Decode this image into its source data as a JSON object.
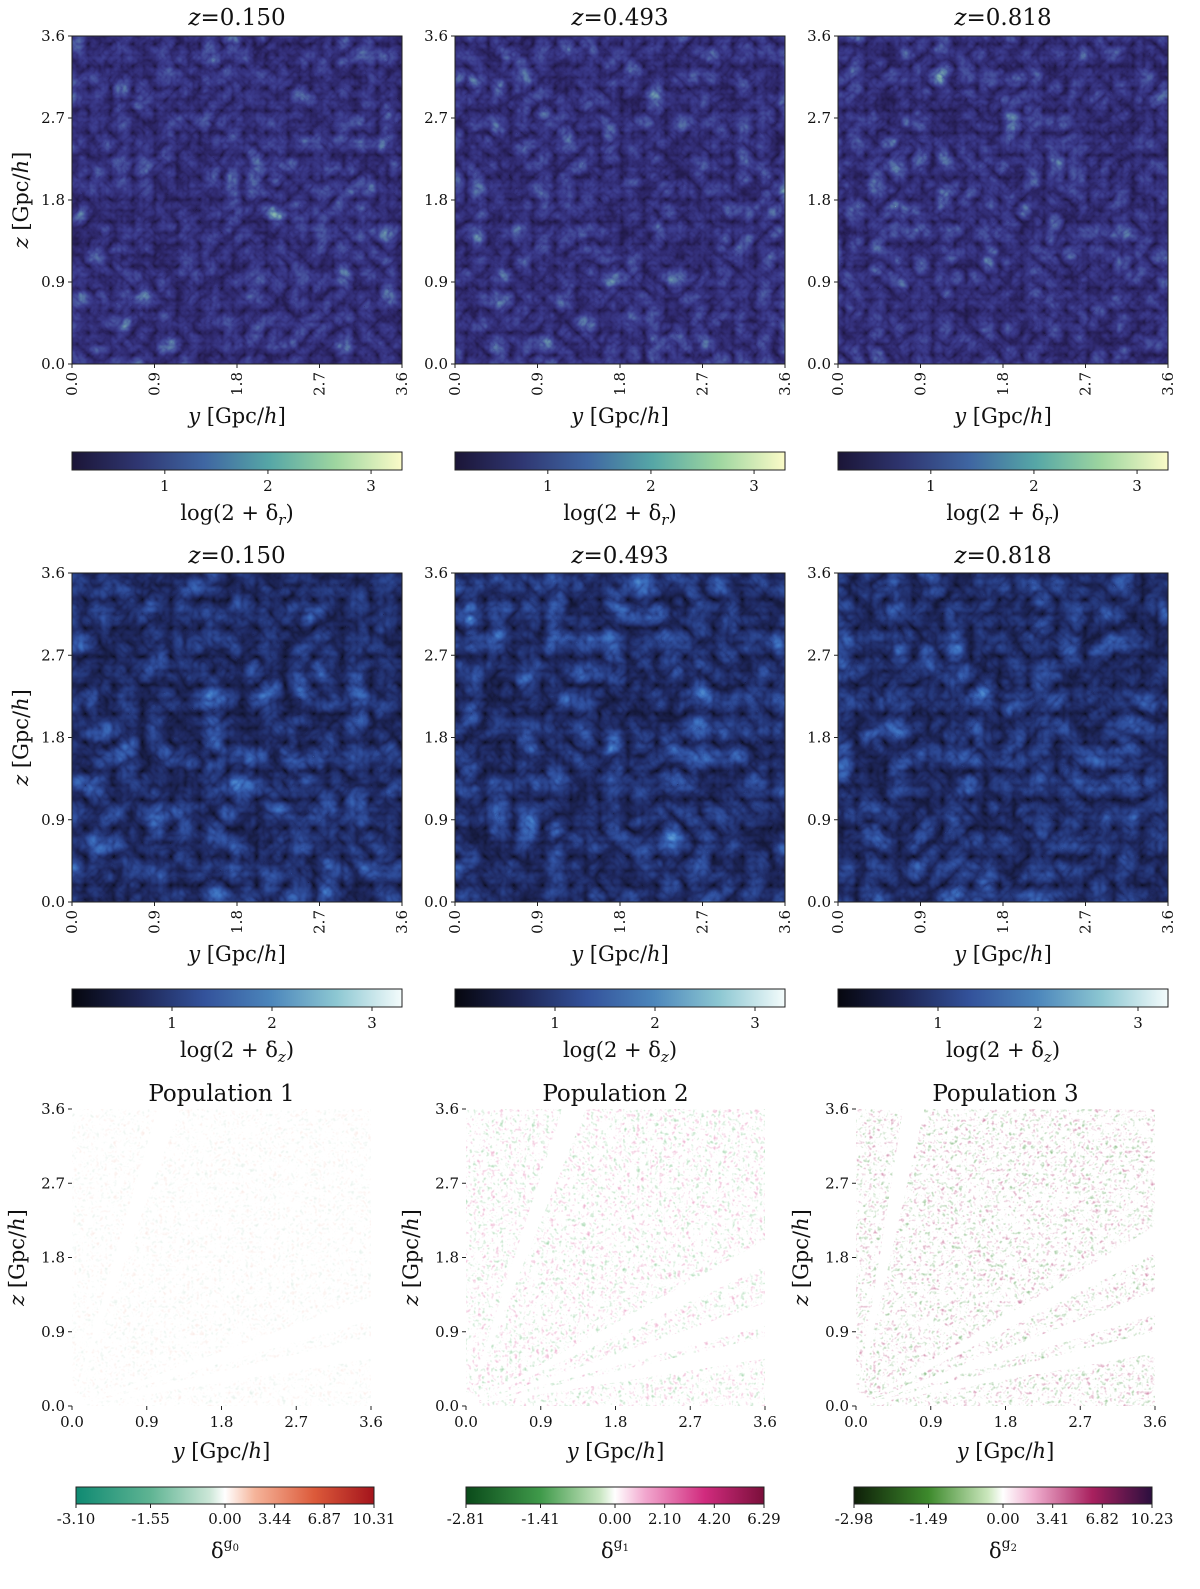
{
  "chart_data": [
    {
      "type": "heatmap",
      "row": 0,
      "col": 0,
      "style": "real",
      "title_var": "z",
      "title_value": "=0.150",
      "xlabel_var": "y",
      "xlabel_unit": " [Gpc/",
      "xlabel_h": "h",
      "xlabel_close": "]",
      "ylabel_var": "z",
      "ylabel_unit": " [Gpc/",
      "ylabel_h": "h",
      "ylabel_close": "]",
      "xticks": [
        "0.0",
        "0.9",
        "1.8",
        "2.7",
        "3.6"
      ],
      "yticks": [
        "0.0",
        "0.9",
        "1.8",
        "2.7",
        "3.6"
      ],
      "xlim": [
        0,
        3.6
      ],
      "ylim": [
        0,
        3.6
      ],
      "colorbar": {
        "colormap": "deep",
        "stops": [
          "#1b1537",
          "#2f3671",
          "#3f66a2",
          "#56a7a6",
          "#9ed6a0",
          "#fbfbc8"
        ],
        "ticks": [
          "1",
          "2",
          "3"
        ],
        "tick_values": [
          1,
          2,
          3
        ],
        "range": [
          0.1,
          3.3
        ],
        "label": "log(2 + δ",
        "label_sub": "r",
        "label_close": ")"
      }
    },
    {
      "type": "heatmap",
      "row": 0,
      "col": 1,
      "style": "real",
      "title_var": "z",
      "title_value": "=0.493",
      "xlabel_var": "y",
      "xlabel_unit": " [Gpc/",
      "xlabel_h": "h",
      "xlabel_close": "]",
      "ylabel_var": "",
      "ylabel_unit": "",
      "ylabel_h": "",
      "ylabel_close": "",
      "xticks": [
        "0.0",
        "0.9",
        "1.8",
        "2.7",
        "3.6"
      ],
      "yticks": [
        "0.0",
        "0.9",
        "1.8",
        "2.7",
        "3.6"
      ],
      "xlim": [
        0,
        3.6
      ],
      "ylim": [
        0,
        3.6
      ],
      "colorbar": {
        "colormap": "deep",
        "stops": [
          "#1b1537",
          "#2f3671",
          "#3f66a2",
          "#56a7a6",
          "#9ed6a0",
          "#fbfbc8"
        ],
        "ticks": [
          "1",
          "2",
          "3"
        ],
        "tick_values": [
          1,
          2,
          3
        ],
        "range": [
          0.1,
          3.3
        ],
        "label": "log(2 + δ",
        "label_sub": "r",
        "label_close": ")"
      }
    },
    {
      "type": "heatmap",
      "row": 0,
      "col": 2,
      "style": "real",
      "title_var": "z",
      "title_value": "=0.818",
      "xlabel_var": "y",
      "xlabel_unit": " [Gpc/",
      "xlabel_h": "h",
      "xlabel_close": "]",
      "ylabel_var": "",
      "ylabel_unit": "",
      "ylabel_h": "",
      "ylabel_close": "",
      "xticks": [
        "0.0",
        "0.9",
        "1.8",
        "2.7",
        "3.6"
      ],
      "yticks": [
        "0.0",
        "0.9",
        "1.8",
        "2.7",
        "3.6"
      ],
      "xlim": [
        0,
        3.6
      ],
      "ylim": [
        0,
        3.6
      ],
      "colorbar": {
        "colormap": "deep",
        "stops": [
          "#1b1537",
          "#2f3671",
          "#3f66a2",
          "#56a7a6",
          "#9ed6a0",
          "#fbfbc8"
        ],
        "ticks": [
          "1",
          "2",
          "3"
        ],
        "tick_values": [
          1,
          2,
          3
        ],
        "range": [
          0.1,
          3.3
        ],
        "label": "log(2 + δ",
        "label_sub": "r",
        "label_close": ")"
      }
    },
    {
      "type": "heatmap",
      "row": 1,
      "col": 0,
      "style": "redshift",
      "title_var": "z",
      "title_value": "=0.150",
      "xlabel_var": "y",
      "xlabel_unit": " [Gpc/",
      "xlabel_h": "h",
      "xlabel_close": "]",
      "ylabel_var": "z",
      "ylabel_unit": " [Gpc/",
      "ylabel_h": "h",
      "ylabel_close": "]",
      "xticks": [
        "0.0",
        "0.9",
        "1.8",
        "2.7",
        "3.6"
      ],
      "yticks": [
        "0.0",
        "0.9",
        "1.8",
        "2.7",
        "3.6"
      ],
      "xlim": [
        0,
        3.6
      ],
      "ylim": [
        0,
        3.6
      ],
      "colorbar": {
        "colormap": "ice",
        "stops": [
          "#06070f",
          "#1d2554",
          "#33529b",
          "#4b85bb",
          "#8cc7d2",
          "#f4fcfc"
        ],
        "ticks": [
          "1",
          "2",
          "3"
        ],
        "tick_values": [
          1,
          2,
          3
        ],
        "range": [
          0.0,
          3.3
        ],
        "label": "log(2 + δ",
        "label_sub": "z",
        "label_close": ")"
      }
    },
    {
      "type": "heatmap",
      "row": 1,
      "col": 1,
      "style": "redshift",
      "title_var": "z",
      "title_value": "=0.493",
      "xlabel_var": "y",
      "xlabel_unit": " [Gpc/",
      "xlabel_h": "h",
      "xlabel_close": "]",
      "ylabel_var": "",
      "ylabel_unit": "",
      "ylabel_h": "",
      "ylabel_close": "",
      "xticks": [
        "0.0",
        "0.9",
        "1.8",
        "2.7",
        "3.6"
      ],
      "yticks": [
        "0.0",
        "0.9",
        "1.8",
        "2.7",
        "3.6"
      ],
      "xlim": [
        0,
        3.6
      ],
      "ylim": [
        0,
        3.6
      ],
      "colorbar": {
        "colormap": "ice",
        "stops": [
          "#06070f",
          "#1d2554",
          "#33529b",
          "#4b85bb",
          "#8cc7d2",
          "#f4fcfc"
        ],
        "ticks": [
          "1",
          "2",
          "3"
        ],
        "tick_values": [
          1,
          2,
          3
        ],
        "range": [
          0.0,
          3.3
        ],
        "label": "log(2 + δ",
        "label_sub": "z",
        "label_close": ")"
      }
    },
    {
      "type": "heatmap",
      "row": 1,
      "col": 2,
      "style": "redshift",
      "title_var": "z",
      "title_value": "=0.818",
      "xlabel_var": "y",
      "xlabel_unit": " [Gpc/",
      "xlabel_h": "h",
      "xlabel_close": "]",
      "ylabel_var": "",
      "ylabel_unit": "",
      "ylabel_h": "",
      "ylabel_close": "",
      "xticks": [
        "0.0",
        "0.9",
        "1.8",
        "2.7",
        "3.6"
      ],
      "yticks": [
        "0.0",
        "0.9",
        "1.8",
        "2.7",
        "3.6"
      ],
      "xlim": [
        0,
        3.6
      ],
      "ylim": [
        0,
        3.6
      ],
      "colorbar": {
        "colormap": "ice",
        "stops": [
          "#06070f",
          "#1d2554",
          "#33529b",
          "#4b85bb",
          "#8cc7d2",
          "#f4fcfc"
        ],
        "ticks": [
          "1",
          "2",
          "3"
        ],
        "tick_values": [
          1,
          2,
          3
        ],
        "range": [
          0.0,
          3.3
        ],
        "label": "log(2 + δ",
        "label_sub": "z",
        "label_close": ")"
      }
    },
    {
      "type": "heatmap",
      "row": 2,
      "col": 0,
      "style": "population",
      "title_var": "",
      "title_value": "Population 1",
      "xlabel_var": "y",
      "xlabel_unit": " [Gpc/",
      "xlabel_h": "h",
      "xlabel_close": "]",
      "ylabel_var": "z",
      "ylabel_unit": " [Gpc/",
      "ylabel_h": "h",
      "ylabel_close": "]",
      "xticks": [
        "0.0",
        "0.9",
        "1.8",
        "2.7",
        "3.6"
      ],
      "yticks": [
        "0.0",
        "0.9",
        "1.8",
        "2.7",
        "3.6"
      ],
      "xlim": [
        0,
        3.6
      ],
      "ylim": [
        0,
        3.6
      ],
      "cone": {
        "extent_gpc": 3.6,
        "alpha": 0.16,
        "gaps_deg": [
          11,
          18,
          72
        ],
        "neg_color": "#2e8b57",
        "pos_color": "#d95f3b"
      },
      "colorbar": {
        "colormap": "diverging",
        "stops": [
          "#0f8a72",
          "#5fb493",
          "#cde7d8",
          "#ffffff",
          "#f5b49a",
          "#dc5a3a",
          "#a4141c"
        ],
        "stop_positions": [
          0,
          0.25,
          0.45,
          0.5,
          0.6,
          0.8,
          1.0
        ],
        "ticks": [
          "-3.10",
          "-1.55",
          "0.00",
          "3.44",
          "6.87",
          "10.31"
        ],
        "tick_fracs": [
          0,
          0.25,
          0.5,
          0.6667,
          0.8333,
          1.0
        ],
        "label": "δ",
        "label_sup": "g",
        "label_sup_sub": "0",
        "label_close": ""
      }
    },
    {
      "type": "heatmap",
      "row": 2,
      "col": 1,
      "style": "population",
      "title_var": "",
      "title_value": "Population 2",
      "xlabel_var": "y",
      "xlabel_unit": " [Gpc/",
      "xlabel_h": "h",
      "xlabel_close": "]",
      "ylabel_var": "z",
      "ylabel_unit": " [Gpc/",
      "ylabel_h": "h",
      "ylabel_close": "]",
      "xticks": [
        "0.0",
        "0.9",
        "1.8",
        "2.7",
        "3.6"
      ],
      "yticks": [
        "0.0",
        "0.9",
        "1.8",
        "2.7",
        "3.6"
      ],
      "xlim": [
        0,
        3.6
      ],
      "ylim": [
        0,
        3.6
      ],
      "cone": {
        "extent_gpc": 3.6,
        "alpha": 0.5,
        "gaps_deg": [
          11,
          17,
          27,
          70
        ],
        "neg_color": "#28a040",
        "pos_color": "#d12b7e"
      },
      "colorbar": {
        "colormap": "diverging",
        "stops": [
          "#0a4a1a",
          "#3f9a4a",
          "#c9e6c2",
          "#ffffff",
          "#f2a8cf",
          "#d12b7e",
          "#7a0f3a"
        ],
        "stop_positions": [
          0,
          0.25,
          0.45,
          0.5,
          0.6,
          0.8,
          1.0
        ],
        "ticks": [
          "-2.81",
          "-1.41",
          "0.00",
          "2.10",
          "4.20",
          "6.29"
        ],
        "tick_fracs": [
          0,
          0.25,
          0.5,
          0.6667,
          0.8333,
          1.0
        ],
        "label": "δ",
        "label_sup": "g",
        "label_sup_sub": "1",
        "label_close": ""
      }
    },
    {
      "type": "heatmap",
      "row": 2,
      "col": 2,
      "style": "population",
      "title_var": "",
      "title_value": "Population 3",
      "xlabel_var": "y",
      "xlabel_unit": " [Gpc/",
      "xlabel_h": "h",
      "xlabel_close": "]",
      "ylabel_var": "z",
      "ylabel_unit": " [Gpc/",
      "ylabel_h": "h",
      "ylabel_close": "]",
      "xticks": [
        "0.0",
        "0.9",
        "1.8",
        "2.7",
        "3.6"
      ],
      "yticks": [
        "0.0",
        "0.9",
        "1.8",
        "2.7",
        "3.6"
      ],
      "xlim": [
        0,
        3.6
      ],
      "ylim": [
        0,
        3.6
      ],
      "cone": {
        "extent_gpc": 3.6,
        "alpha": 0.65,
        "gaps_deg": [
          12,
          19,
          29,
          79
        ],
        "neg_color": "#2f8a2a",
        "pos_color": "#a8205e"
      },
      "colorbar": {
        "colormap": "diverging",
        "stops": [
          "#0e1f08",
          "#3d8a2c",
          "#cbe7bd",
          "#ffffff",
          "#f0b0d0",
          "#a8205e",
          "#2b0f3e"
        ],
        "stop_positions": [
          0,
          0.25,
          0.45,
          0.5,
          0.6,
          0.8,
          1.0
        ],
        "ticks": [
          "-2.98",
          "-1.49",
          "0.00",
          "3.41",
          "6.82",
          "10.23"
        ],
        "tick_fracs": [
          0,
          0.25,
          0.5,
          0.6667,
          0.8333,
          1.0
        ],
        "label": "δ",
        "label_sup": "g",
        "label_sup_sub": "2",
        "label_close": ""
      }
    }
  ]
}
